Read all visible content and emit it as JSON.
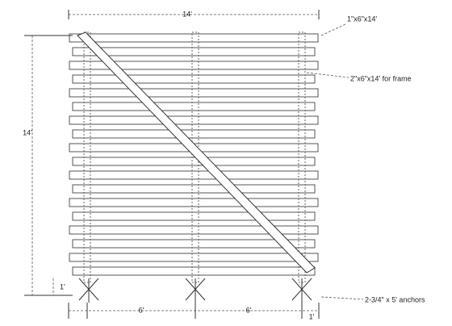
{
  "dimensions": {
    "top_width": "14'",
    "left_height": "14'",
    "bottom_left_height": "1'",
    "bottom_span_1": "6'",
    "bottom_span_2": "6'",
    "bottom_right": "1'"
  },
  "callouts": {
    "boards": "1\"x6\"x14'",
    "frame": "2\"x6\"x14' for frame",
    "anchors": "2-3/4\" x 5' anchors"
  }
}
